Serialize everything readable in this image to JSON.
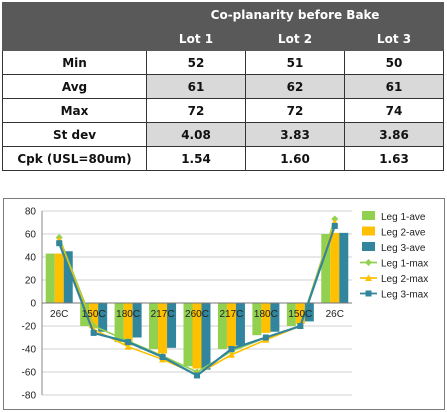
{
  "table": {
    "title": "Co-planarity before Bake",
    "columns": [
      "Lot 1",
      "Lot 2",
      "Lot 3"
    ],
    "rows": [
      {
        "label": "Min",
        "values": [
          "52",
          "51",
          "50"
        ],
        "shaded": false
      },
      {
        "label": "Avg",
        "values": [
          "61",
          "62",
          "61"
        ],
        "shaded": true
      },
      {
        "label": "Max",
        "values": [
          "72",
          "72",
          "74"
        ],
        "shaded": false
      },
      {
        "label": "St dev",
        "values": [
          "4.08",
          "3.83",
          "3.86"
        ],
        "shaded": true
      },
      {
        "label": "Cpk (USL=80um)",
        "values": [
          "1.54",
          "1.60",
          "1.63"
        ],
        "shaded": false
      }
    ]
  },
  "chart_data": {
    "type": "bar",
    "categories": [
      "26C",
      "150C",
      "180C",
      "217C",
      "260C",
      "217C",
      "180C",
      "150C",
      "26C"
    ],
    "ylim": [
      -80,
      80
    ],
    "yticks": [
      80,
      60,
      40,
      20,
      0,
      -20,
      -40,
      -60,
      -80
    ],
    "grid": true,
    "legend_position": "right",
    "series": [
      {
        "name": "Leg 1-ave",
        "kind": "bar",
        "color": "#92d050",
        "values": [
          43,
          -20,
          -34,
          -40,
          -55,
          -40,
          -28,
          -20,
          60
        ]
      },
      {
        "name": "Leg 2-ave",
        "kind": "bar",
        "color": "#ffc000",
        "values": [
          43,
          -22,
          -37,
          -44,
          -57,
          -39,
          -26,
          -18,
          61
        ]
      },
      {
        "name": "Leg 3-ave",
        "kind": "bar",
        "color": "#31859c",
        "values": [
          45,
          -25,
          -30,
          -39,
          -58,
          -37,
          -25,
          -16,
          61
        ]
      },
      {
        "name": "Leg 1-max",
        "kind": "line",
        "color": "#92d050",
        "values": [
          57,
          -20,
          -33,
          -46,
          -60,
          -42,
          -30,
          -20,
          73
        ]
      },
      {
        "name": "Leg 2-max",
        "kind": "line",
        "color": "#ffc000",
        "values": [
          55,
          -23,
          -38,
          -49,
          -62,
          -45,
          -32,
          -20,
          70
        ]
      },
      {
        "name": "Leg 3-max",
        "kind": "line",
        "color": "#31859c",
        "values": [
          52,
          -26,
          -34,
          -47,
          -63,
          -40,
          -30,
          -20,
          67
        ]
      }
    ]
  }
}
